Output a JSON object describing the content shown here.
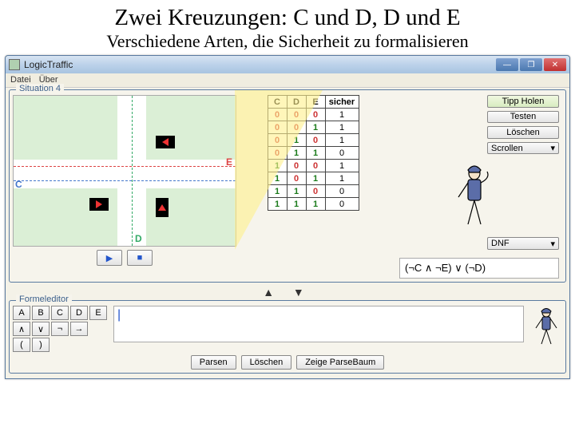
{
  "slide": {
    "title": "Zwei Kreuzungen: C und D, D und E",
    "subtitle": "Verschiedene Arten, die Sicherheit zu formalisieren"
  },
  "window": {
    "title": "LogicTraffic",
    "menu": {
      "file": "Datei",
      "about": "Über"
    }
  },
  "situation": {
    "group_label": "Situation 4",
    "lanes": {
      "E": "E",
      "C": "C",
      "D": "D"
    },
    "play_icon": "▶",
    "stop_icon": "■"
  },
  "truth_table": {
    "columns": [
      "C",
      "D",
      "E",
      "sicher"
    ],
    "rows": [
      [
        "0",
        "0",
        "0",
        "1"
      ],
      [
        "0",
        "0",
        "1",
        "1"
      ],
      [
        "0",
        "1",
        "0",
        "1"
      ],
      [
        "0",
        "1",
        "1",
        "0"
      ],
      [
        "1",
        "0",
        "0",
        "1"
      ],
      [
        "1",
        "0",
        "1",
        "1"
      ],
      [
        "1",
        "1",
        "0",
        "0"
      ],
      [
        "1",
        "1",
        "1",
        "0"
      ]
    ]
  },
  "buttons": {
    "tipp": "Tipp Holen",
    "testen": "Testen",
    "loeschen": "Löschen",
    "scrollen": "Scrollen",
    "dnf": "DNF"
  },
  "formula": {
    "text": "(¬C ∧ ¬E)  ∨  (¬D)"
  },
  "formel_editor": {
    "group_label": "Formeleditor",
    "symbols_row1": [
      "A",
      "B",
      "C",
      "D",
      "E"
    ],
    "symbols_row2": [
      "∧",
      "∨",
      "¬",
      "→"
    ],
    "symbols_row3": [
      "(",
      ")"
    ],
    "cursor": "|",
    "parsen": "Parsen",
    "loeschen": "Löschen",
    "baum": "Zeige ParseBaum"
  },
  "colors": {
    "grass": "#dbefd6",
    "road": "#ffffff",
    "lane_E": "#d44",
    "lane_C": "#47c",
    "lane_D": "#3a6",
    "spotlight": "rgba(255,240,140,.6)",
    "figure": "#5b6da8"
  }
}
